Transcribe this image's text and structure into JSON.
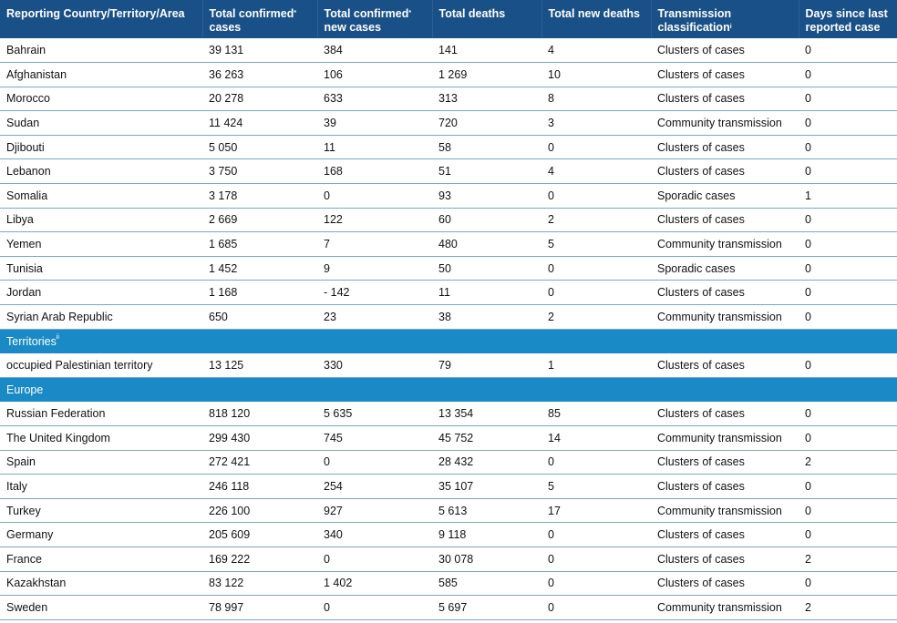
{
  "header": {
    "country": "Reporting Country/Territory/Area",
    "confirmed": "Total confirmed",
    "confirmed_sup": "*",
    "confirmed_sub": "cases",
    "new_cases": "Total confirmed",
    "new_cases_sup": "*",
    "new_cases_sub": "new cases",
    "deaths": "Total deaths",
    "new_deaths": "Total new deaths",
    "transmission": "Transmission",
    "transmission_sub": "classification",
    "transmission_sup": "i",
    "days": "Days since last",
    "days_sub": "reported case"
  },
  "rows_a": [
    {
      "country": "Bahrain",
      "confirmed": "39 131",
      "new_cases": "384",
      "deaths": "141",
      "new_deaths": "4",
      "transmission": "Clusters of cases",
      "days": "0"
    },
    {
      "country": "Afghanistan",
      "confirmed": "36 263",
      "new_cases": "106",
      "deaths": "1 269",
      "new_deaths": "10",
      "transmission": "Clusters of cases",
      "days": "0"
    },
    {
      "country": "Morocco",
      "confirmed": "20 278",
      "new_cases": "633",
      "deaths": "313",
      "new_deaths": "8",
      "transmission": "Clusters of cases",
      "days": "0"
    },
    {
      "country": "Sudan",
      "confirmed": "11 424",
      "new_cases": "39",
      "deaths": "720",
      "new_deaths": "3",
      "transmission": "Community transmission",
      "days": "0"
    },
    {
      "country": "Djibouti",
      "confirmed": "5 050",
      "new_cases": "11",
      "deaths": "58",
      "new_deaths": "0",
      "transmission": "Clusters of cases",
      "days": "0"
    },
    {
      "country": "Lebanon",
      "confirmed": "3 750",
      "new_cases": "168",
      "deaths": "51",
      "new_deaths": "4",
      "transmission": "Clusters of cases",
      "days": "0"
    },
    {
      "country": "Somalia",
      "confirmed": "3 178",
      "new_cases": "0",
      "deaths": "93",
      "new_deaths": "0",
      "transmission": "Sporadic cases",
      "days": "1"
    },
    {
      "country": "Libya",
      "confirmed": "2 669",
      "new_cases": "122",
      "deaths": "60",
      "new_deaths": "2",
      "transmission": "Clusters of cases",
      "days": "0"
    },
    {
      "country": "Yemen",
      "confirmed": "1 685",
      "new_cases": "7",
      "deaths": "480",
      "new_deaths": "5",
      "transmission": "Community transmission",
      "days": "0"
    },
    {
      "country": "Tunisia",
      "confirmed": "1 452",
      "new_cases": "9",
      "deaths": "50",
      "new_deaths": "0",
      "transmission": "Sporadic cases",
      "days": "0"
    },
    {
      "country": "Jordan",
      "confirmed": "1 168",
      "new_cases": "- 142",
      "deaths": "11",
      "new_deaths": "0",
      "transmission": "Clusters of cases",
      "days": "0"
    },
    {
      "country": "Syrian Arab Republic",
      "confirmed": "650",
      "new_cases": "23",
      "deaths": "38",
      "new_deaths": "2",
      "transmission": "Community transmission",
      "days": "0"
    }
  ],
  "section_territories": {
    "label": "Territories",
    "sup": "ii"
  },
  "rows_b": [
    {
      "country": "occupied Palestinian territory",
      "confirmed": "13 125",
      "new_cases": "330",
      "deaths": "79",
      "new_deaths": "1",
      "transmission": "Clusters of cases",
      "days": "0"
    }
  ],
  "section_europe": {
    "label": "Europe"
  },
  "rows_c": [
    {
      "country": "Russian Federation",
      "confirmed": "818 120",
      "new_cases": "5 635",
      "deaths": "13 354",
      "new_deaths": "85",
      "transmission": "Clusters of cases",
      "days": "0"
    },
    {
      "country": "The United Kingdom",
      "confirmed": "299 430",
      "new_cases": "745",
      "deaths": "45 752",
      "new_deaths": "14",
      "transmission": "Community transmission",
      "days": "0"
    },
    {
      "country": "Spain",
      "confirmed": "272 421",
      "new_cases": "0",
      "deaths": "28 432",
      "new_deaths": "0",
      "transmission": "Clusters of cases",
      "days": "2"
    },
    {
      "country": "Italy",
      "confirmed": "246 118",
      "new_cases": "254",
      "deaths": "35 107",
      "new_deaths": "5",
      "transmission": "Clusters of cases",
      "days": "0"
    },
    {
      "country": "Turkey",
      "confirmed": "226 100",
      "new_cases": "927",
      "deaths": "5 613",
      "new_deaths": "17",
      "transmission": "Community transmission",
      "days": "0"
    },
    {
      "country": "Germany",
      "confirmed": "205 609",
      "new_cases": "340",
      "deaths": "9 118",
      "new_deaths": "0",
      "transmission": "Clusters of cases",
      "days": "0"
    },
    {
      "country": "France",
      "confirmed": "169 222",
      "new_cases": "0",
      "deaths": "30 078",
      "new_deaths": "0",
      "transmission": "Clusters of cases",
      "days": "2"
    },
    {
      "country": "Kazakhstan",
      "confirmed": "83 122",
      "new_cases": "1 402",
      "deaths": "585",
      "new_deaths": "0",
      "transmission": "Clusters of cases",
      "days": "0"
    },
    {
      "country": "Sweden",
      "confirmed": "78 997",
      "new_cases": "0",
      "deaths": "5 697",
      "new_deaths": "0",
      "transmission": "Community transmission",
      "days": "2"
    }
  ]
}
